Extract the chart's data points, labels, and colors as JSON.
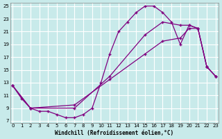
{
  "xlabel": "Windchill (Refroidissement éolien,°C)",
  "bg_color": "#c8eaea",
  "line_color": "#800080",
  "grid_color": "#ffffff",
  "xlim": [
    0,
    23
  ],
  "ylim": [
    7,
    25
  ],
  "xticks": [
    0,
    1,
    2,
    3,
    4,
    5,
    6,
    7,
    8,
    9,
    10,
    11,
    12,
    13,
    14,
    15,
    16,
    17,
    18,
    19,
    20,
    21,
    22,
    23
  ],
  "yticks": [
    7,
    9,
    11,
    13,
    15,
    17,
    19,
    21,
    23,
    25
  ],
  "line1_x": [
    0,
    1,
    2,
    3,
    4,
    5,
    6,
    7,
    8,
    9,
    10,
    11,
    12,
    13,
    14,
    15,
    16,
    17,
    18,
    19,
    20,
    21,
    22,
    23
  ],
  "line1_y": [
    12.5,
    10.5,
    9.0,
    8.5,
    8.5,
    8.0,
    7.5,
    7.5,
    8.0,
    9.0,
    13.0,
    17.5,
    21.0,
    22.5,
    24.0,
    25.0,
    25.0,
    24.0,
    22.5,
    19.0,
    22.0,
    21.5,
    15.5,
    14.0
  ],
  "line2_x": [
    0,
    2,
    7,
    11,
    15,
    17,
    19,
    20,
    21,
    22,
    23
  ],
  "line2_y": [
    12.5,
    9.0,
    9.0,
    14.0,
    20.5,
    22.5,
    22.0,
    22.0,
    21.5,
    15.5,
    14.0
  ],
  "line3_x": [
    0,
    2,
    7,
    11,
    15,
    17,
    19,
    20,
    21,
    22,
    23
  ],
  "line3_y": [
    12.5,
    9.0,
    9.5,
    13.5,
    17.5,
    19.5,
    20.0,
    21.5,
    21.5,
    15.5,
    14.0
  ]
}
